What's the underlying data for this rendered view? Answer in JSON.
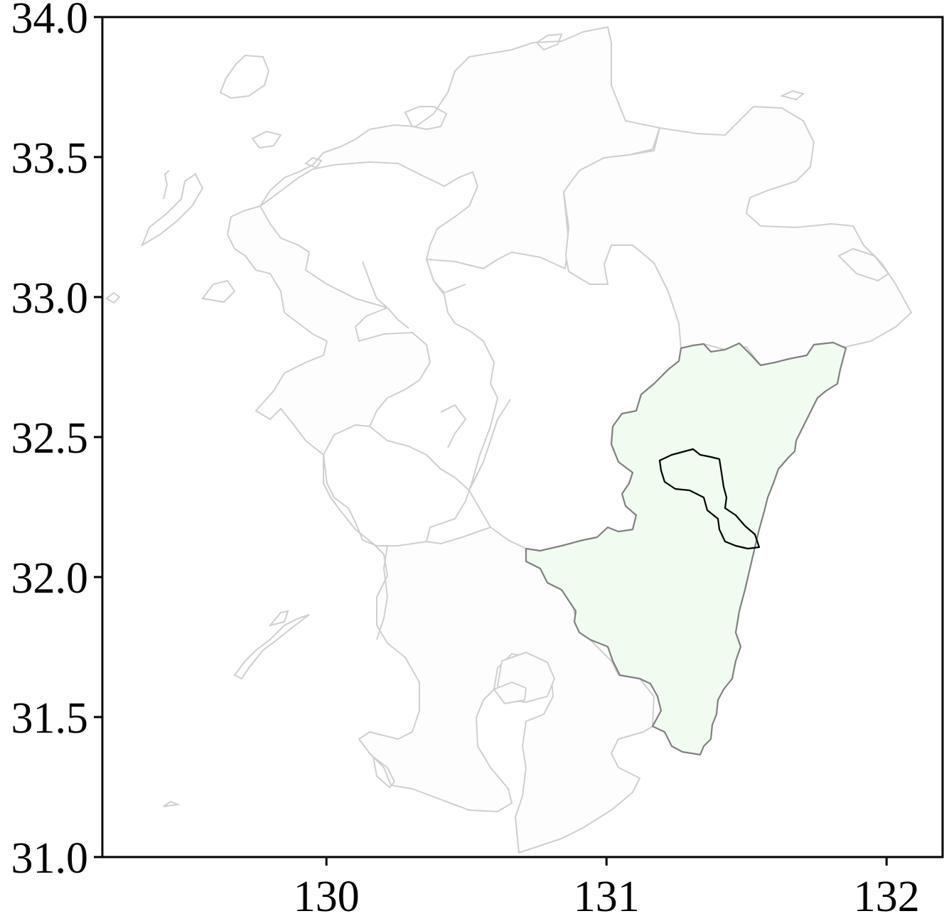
{
  "map": {
    "x_ticks": [
      "130",
      "131",
      "132"
    ],
    "y_ticks": [
      "34.0",
      "33.5",
      "33.0",
      "32.5",
      "32.0",
      "31.5",
      "31.0"
    ],
    "x_range": [
      129.2,
      132.2
    ],
    "y_range": [
      31.0,
      34.0
    ],
    "highlight_region": {
      "fill": "#effcef",
      "edge": "#808080"
    },
    "basin_outline": {
      "edge": "#000000"
    },
    "background_lines": "#cfcfcf",
    "grid": false
  }
}
